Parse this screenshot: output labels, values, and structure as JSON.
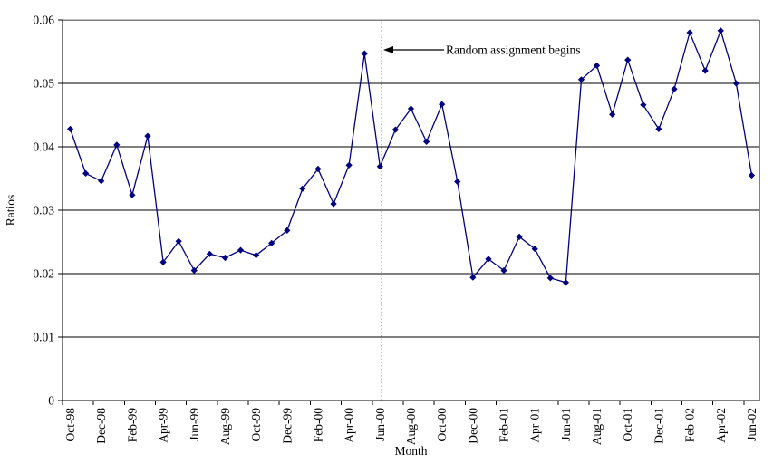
{
  "chart_data": {
    "type": "line",
    "title": "",
    "xlabel": "Month",
    "ylabel": "Ratios",
    "ylim": [
      0,
      0.06
    ],
    "ytick_step": 0.01,
    "ytick_labels": [
      "0",
      "0.01",
      "0.02",
      "0.03",
      "0.04",
      "0.05",
      "0.06"
    ],
    "grid": "horizontal",
    "legend": "none",
    "x_tick_label_every": 2,
    "categories": [
      "Oct-98",
      "Nov-98",
      "Dec-98",
      "Jan-99",
      "Feb-99",
      "Mar-99",
      "Apr-99",
      "May-99",
      "Jun-99",
      "Jul-99",
      "Aug-99",
      "Sep-99",
      "Oct-99",
      "Nov-99",
      "Dec-99",
      "Jan-00",
      "Feb-00",
      "Mar-00",
      "Apr-00",
      "May-00",
      "Jun-00",
      "Jul-00",
      "Aug-00",
      "Sep-00",
      "Oct-00",
      "Nov-00",
      "Dec-00",
      "Jan-01",
      "Feb-01",
      "Mar-01",
      "Apr-01",
      "May-01",
      "Jun-01",
      "Jul-01",
      "Aug-01",
      "Sep-01",
      "Oct-01",
      "Nov-01",
      "Dec-01",
      "Jan-02",
      "Feb-02",
      "Mar-02",
      "Apr-02",
      "May-02",
      "Jun-02"
    ],
    "series": [
      {
        "name": "Ratios",
        "marker": "diamond",
        "color": "#000080",
        "values": [
          0.0428,
          0.0358,
          0.0346,
          0.0403,
          0.0324,
          0.0417,
          0.0218,
          0.0251,
          0.0205,
          0.0231,
          0.0225,
          0.0237,
          0.0229,
          0.0248,
          0.0268,
          0.0334,
          0.0365,
          0.031,
          0.0371,
          0.0547,
          0.0369,
          0.0427,
          0.046,
          0.0408,
          0.0467,
          0.0345,
          0.0194,
          0.0223,
          0.0205,
          0.0258,
          0.0239,
          0.0193,
          0.0186,
          0.0506,
          0.0528,
          0.0451,
          0.0537,
          0.0466,
          0.0428,
          0.0491,
          0.058,
          0.052,
          0.0583,
          0.05,
          0.0355
        ]
      }
    ],
    "annotation": {
      "text": "Random assignment begins",
      "vline_x_category_units": 20.6,
      "vline_style": "dotted",
      "vline_color": "#808080",
      "arrow_color": "#000000"
    },
    "colors": {
      "series": "#000080",
      "gridline": "#000000",
      "axis": "#000000",
      "plot_border": "#808080",
      "background": "#ffffff"
    }
  }
}
